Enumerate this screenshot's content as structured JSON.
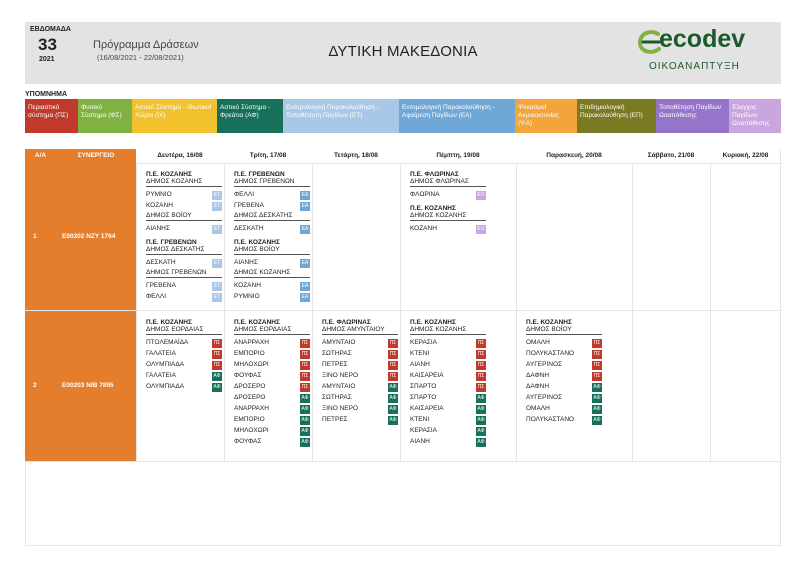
{
  "header": {
    "week_label": "ΕΒΔΟΜΑΔΑ",
    "week_number": "33",
    "year": "2021",
    "program_title": "Πρόγραμμα Δράσεων",
    "program_range": "(16/08/2021 - 22/08/2021)",
    "region": "ΔΥΤΙΚΗ ΜΑΚΕΔΟΝΙΑ",
    "logo_text": "ecodev",
    "logo_sub": "ΟΙΚΟΑΝΑΠΤΥΞΗ"
  },
  "legend": {
    "title": "ΥΠΟΜΝΗΜΑ",
    "items": [
      {
        "label": "Περιαστικό σύστημα (ΠΣ)",
        "color": "#c0392b"
      },
      {
        "label": "Φυσικό Σύστημα (ΦΣ)",
        "color": "#7fb241"
      },
      {
        "label": "Αστικό Σύστημα - Ιδιωτικοί Χώροι (ΙΧ)",
        "color": "#f2c12e"
      },
      {
        "label": "Αστικό Σύστημα - Φρεάτια (ΑΦ)",
        "color": "#16705a"
      },
      {
        "label": "Εντομολογική Παρακολούθηση - Τοποθέτηση Παγίδων (ΕΤ)",
        "color": "#a9c7e6"
      },
      {
        "label": "Εντομολογική Παρακολούθηση - Αφαίρεση Παγίδων (ΕΑ)",
        "color": "#6fa8d6"
      },
      {
        "label": "Ψεκασμοί Ακμαιοκτονίας (ΨΑ)",
        "color": "#f3a43a"
      },
      {
        "label": "Επιδημιολογική Παρακολούθηση (ΕΠ)",
        "color": "#7a7a22"
      },
      {
        "label": "Τοποθέτηση Παγίδων Ωοαπόθεσης",
        "color": "#9575c9"
      },
      {
        "label": "Έλεγχος Παγίδων Ωοαπόθεσης",
        "color": "#c9a6e0"
      }
    ]
  },
  "table": {
    "col_aa": "Α/Α",
    "col_partner": "ΣΥΝΕΡΓΕΙΟ",
    "days": [
      "Δευτέρα, 16/08",
      "Τρίτη, 17/08",
      "Τετάρτη, 18/08",
      "Πέμπτη, 19/08",
      "Παρασκευή, 20/08",
      "Σάββατο, 21/08",
      "Κυριακή, 22/08"
    ],
    "rows": [
      {
        "num": "1",
        "partner": "E00202 NZY 1764",
        "days": [
          {
            "groups": [
              {
                "title": "Π.Ε. ΚΟΖΑΝΗΣ",
                "sub": "ΔΗΜΟΣ ΚΟΖΑΝΗΣ",
                "entries": [
                  {
                    "name": "ΡΥΜΝΙΟ",
                    "tag": "ΕΤ"
                  },
                  {
                    "name": "ΚΟΖΑΝΗ",
                    "tag": "ΕΤ"
                  }
                ]
              },
              {
                "title": "",
                "sub": "ΔΗΜΟΣ ΒΟΪΟΥ",
                "entries": [
                  {
                    "name": "ΑΙΑΝΗΣ",
                    "tag": "ΕΤ"
                  }
                ]
              },
              {
                "title": "Π.Ε. ΓΡΕΒΕΝΩΝ",
                "sub": "ΔΗΜΟΣ ΔΕΣΚΑΤΗΣ",
                "entries": [
                  {
                    "name": "ΔΕΣΚΑΤΗ",
                    "tag": "ΕΤ"
                  }
                ]
              },
              {
                "title": "",
                "sub": "ΔΗΜΟΣ ΓΡΕΒΕΝΩΝ",
                "entries": [
                  {
                    "name": "ΓΡΕΒΕΝΑ",
                    "tag": "ΕΤ"
                  },
                  {
                    "name": "ΦΕΛΛΙ",
                    "tag": "ΕΤ"
                  }
                ]
              }
            ]
          },
          {
            "groups": [
              {
                "title": "Π.Ε. ΓΡΕΒΕΝΩΝ",
                "sub": "ΔΗΜΟΣ ΓΡΕΒΕΝΩΝ",
                "entries": [
                  {
                    "name": "ΦΕΛΛΙ",
                    "tag": "ΕΑ"
                  },
                  {
                    "name": "ΓΡΕΒΕΝΑ",
                    "tag": "ΕΑ"
                  }
                ]
              },
              {
                "title": "",
                "sub": "ΔΗΜΟΣ ΔΕΣΚΑΤΗΣ",
                "entries": [
                  {
                    "name": "ΔΕΣΚΑΤΗ",
                    "tag": "ΕΑ"
                  }
                ]
              },
              {
                "title": "Π.Ε. ΚΟΖΑΝΗΣ",
                "sub": "ΔΗΜΟΣ ΒΟΪΟΥ",
                "entries": [
                  {
                    "name": "ΑΙΑΝΗΣ",
                    "tag": "ΕΑ"
                  }
                ]
              },
              {
                "title": "",
                "sub": "ΔΗΜΟΣ ΚΟΖΑΝΗΣ",
                "entries": [
                  {
                    "name": "ΚΟΖΑΝΗ",
                    "tag": "ΕΑ"
                  },
                  {
                    "name": "ΡΥΜΝΙΟ",
                    "tag": "ΕΑ"
                  }
                ]
              }
            ]
          },
          {
            "groups": []
          },
          {
            "groups": [
              {
                "title": "Π.Ε. ΦΛΩΡΙΝΑΣ",
                "sub": "ΔΗΜΟΣ ΦΛΩΡΙΝΑΣ",
                "entries": [
                  {
                    "name": "ΦΛΩΡΙΝΑ",
                    "tag": "ΕΟ"
                  }
                ]
              },
              {
                "title": "Π.Ε. ΚΟΖΑΝΗΣ",
                "sub": "ΔΗΜΟΣ ΚΟΖΑΝΗΣ",
                "entries": [
                  {
                    "name": "ΚΟΖΑΝΗ",
                    "tag": "ΕΟ"
                  }
                ]
              }
            ]
          },
          {
            "groups": []
          },
          {
            "groups": []
          },
          {
            "groups": []
          }
        ]
      },
      {
        "num": "2",
        "partner": "E00203 NIB 7895",
        "days": [
          {
            "groups": [
              {
                "title": "Π.Ε. ΚΟΖΑΝΗΣ",
                "sub": "ΔΗΜΟΣ ΕΟΡΔΑΙΑΣ",
                "entries": [
                  {
                    "name": "ΠΤΟΛΕΜΑΪΔΑ",
                    "tag": "ΠΣ"
                  },
                  {
                    "name": "ΓΑΛΑΤΕΙΑ",
                    "tag": "ΠΣ"
                  },
                  {
                    "name": "ΟΛΥΜΠΙΑΔΑ",
                    "tag": "ΠΣ"
                  },
                  {
                    "name": "ΓΑΛΑΤΕΙΑ",
                    "tag": "ΑΦ"
                  },
                  {
                    "name": "ΟΛΥΜΠΙΑΔΑ",
                    "tag": "ΑΦ"
                  }
                ]
              }
            ]
          },
          {
            "groups": [
              {
                "title": "Π.Ε. ΚΟΖΑΝΗΣ",
                "sub": "ΔΗΜΟΣ ΕΟΡΔΑΙΑΣ",
                "entries": [
                  {
                    "name": "ΑΝΑΡΡΑΧΗ",
                    "tag": "ΠΣ"
                  },
                  {
                    "name": "ΕΜΠΟΡΙΟ",
                    "tag": "ΠΣ"
                  },
                  {
                    "name": "ΜΗΛΟΧΩΡΙ",
                    "tag": "ΠΣ"
                  },
                  {
                    "name": "ΦΟΥΦΑΣ",
                    "tag": "ΠΣ"
                  },
                  {
                    "name": "ΔΡΟΣΕΡΟ",
                    "tag": "ΠΣ"
                  },
                  {
                    "name": "ΔΡΟΣΕΡΟ",
                    "tag": "ΑΦ"
                  },
                  {
                    "name": "ΑΝΑΡΡΑΧΗ",
                    "tag": "ΑΦ"
                  },
                  {
                    "name": "ΕΜΠΟΡΙΟ",
                    "tag": "ΑΦ"
                  },
                  {
                    "name": "ΜΗΛΟΧΩΡΙ",
                    "tag": "ΑΦ"
                  },
                  {
                    "name": "ΦΟΥΦΑΣ",
                    "tag": "ΑΦ"
                  }
                ]
              }
            ]
          },
          {
            "groups": [
              {
                "title": "Π.Ε. ΦΛΩΡΙΝΑΣ",
                "sub": "ΔΗΜΟΣ ΑΜΥΝΤΑΙΟΥ",
                "entries": [
                  {
                    "name": "ΑΜΥΝΤΑΙΟ",
                    "tag": "ΠΣ"
                  },
                  {
                    "name": "ΣΩΤΗΡΑΣ",
                    "tag": "ΠΣ"
                  },
                  {
                    "name": "ΠΕΤΡΕΣ",
                    "tag": "ΠΣ"
                  },
                  {
                    "name": "ΞΙΝΟ ΝΕΡΟ",
                    "tag": "ΠΣ"
                  },
                  {
                    "name": "ΑΜΥΝΤΑΙΟ",
                    "tag": "ΑΦ"
                  },
                  {
                    "name": "ΣΩΤΗΡΑΣ",
                    "tag": "ΑΦ"
                  },
                  {
                    "name": "ΞΙΝΟ ΝΕΡΟ",
                    "tag": "ΑΦ"
                  },
                  {
                    "name": "ΠΕΤΡΕΣ",
                    "tag": "ΑΦ"
                  }
                ]
              }
            ]
          },
          {
            "groups": [
              {
                "title": "Π.Ε. ΚΟΖΑΝΗΣ",
                "sub": "ΔΗΜΟΣ ΚΟΖΑΝΗΣ",
                "entries": [
                  {
                    "name": "ΚΕΡΑΣΙΑ",
                    "tag": "ΠΣ"
                  },
                  {
                    "name": "ΚΤΕΝΙ",
                    "tag": "ΠΣ"
                  },
                  {
                    "name": "ΑΙΑΝΗ",
                    "tag": "ΠΣ"
                  },
                  {
                    "name": "ΚΑΙΣΑΡΕΙΑ",
                    "tag": "ΠΣ"
                  },
                  {
                    "name": "ΣΠΑΡΤΟ",
                    "tag": "ΠΣ"
                  },
                  {
                    "name": "ΣΠΑΡΤΟ",
                    "tag": "ΑΦ"
                  },
                  {
                    "name": "ΚΑΙΣΑΡΕΙΑ",
                    "tag": "ΑΦ"
                  },
                  {
                    "name": "ΚΤΕΝΙ",
                    "tag": "ΑΦ"
                  },
                  {
                    "name": "ΚΕΡΑΣΙΑ",
                    "tag": "ΑΦ"
                  },
                  {
                    "name": "ΑΙΑΝΗ",
                    "tag": "ΑΦ"
                  }
                ]
              }
            ]
          },
          {
            "groups": [
              {
                "title": "Π.Ε. ΚΟΖΑΝΗΣ",
                "sub": "ΔΗΜΟΣ ΒΟΪΟΥ",
                "entries": [
                  {
                    "name": "ΟΜΑΛΗ",
                    "tag": "ΠΣ"
                  },
                  {
                    "name": "ΠΟΛΥΚΑΣΤΑΝΟ",
                    "tag": "ΠΣ"
                  },
                  {
                    "name": "ΑΥΓΕΡΙΝΟΣ",
                    "tag": "ΠΣ"
                  },
                  {
                    "name": "ΔΑΦΝΗ",
                    "tag": "ΠΣ"
                  },
                  {
                    "name": "ΔΑΦΝΗ",
                    "tag": "ΑΦ"
                  },
                  {
                    "name": "ΑΥΓΕΡΙΝΟΣ",
                    "tag": "ΑΦ"
                  },
                  {
                    "name": "ΟΜΑΛΗ",
                    "tag": "ΑΦ"
                  },
                  {
                    "name": "ΠΟΛΥΚΑΣΤΑΝΟ",
                    "tag": "ΑΦ"
                  }
                ]
              }
            ]
          },
          {
            "groups": []
          },
          {
            "groups": []
          }
        ]
      }
    ]
  },
  "tag_colors": {
    "ΠΣ": "#c0392b",
    "ΑΦ": "#16705a",
    "ΕΤ": "#a9c7e6",
    "ΕΑ": "#6fa8d6",
    "ΕΟ": "#c9a6e0"
  }
}
